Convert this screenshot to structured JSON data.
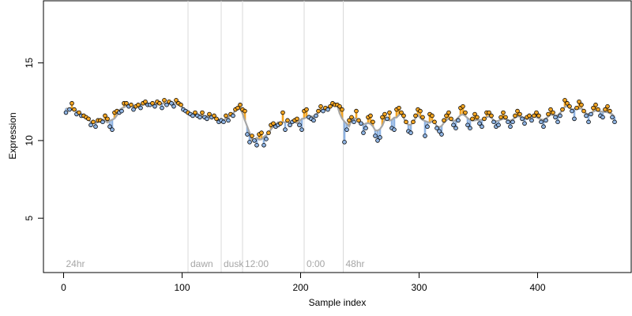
{
  "chart_data": {
    "type": "scatter",
    "xlabel": "Sample index",
    "ylabel": "Expression",
    "xlim": [
      -17,
      479
    ],
    "ylim": [
      1.5,
      19
    ],
    "x_ticks": [
      "0",
      "100",
      "200",
      "300",
      "400"
    ],
    "y_ticks": [
      "5",
      "10",
      "15"
    ],
    "grid": false,
    "legend": "none",
    "colors": {
      "above_trend": "#f5a623",
      "below_trend": "#8fb4e3",
      "trend_line": "#a6a6a6",
      "phase_line": "#d9d9d9",
      "phase_label": "#a6a6a6"
    },
    "phases": [
      {
        "label": "24hr",
        "x": 0
      },
      {
        "label": "dawn",
        "x": 105
      },
      {
        "label": "dusk",
        "x": 133
      },
      {
        "label": "12:00",
        "x": 151
      },
      {
        "label": "0:00",
        "x": 203
      },
      {
        "label": "48hr",
        "x": 236
      }
    ],
    "series": [
      {
        "values": [
          [
            2,
            11.8
          ],
          [
            5,
            12.0
          ],
          [
            7,
            12.4
          ],
          [
            9,
            12.0
          ],
          [
            11,
            11.7
          ],
          [
            13,
            11.8
          ],
          [
            15,
            11.6
          ],
          [
            17,
            11.6
          ],
          [
            19,
            11.5
          ],
          [
            21,
            11.4
          ],
          [
            23,
            11.0
          ],
          [
            25,
            11.2
          ],
          [
            27,
            10.9
          ],
          [
            29,
            11.3
          ],
          [
            31,
            11.3
          ],
          [
            33,
            11.2
          ],
          [
            35,
            11.6
          ],
          [
            37,
            11.4
          ],
          [
            39,
            10.9
          ],
          [
            41,
            10.7
          ],
          [
            43,
            11.8
          ],
          [
            45,
            11.9
          ],
          [
            47,
            11.8
          ],
          [
            49,
            11.9
          ],
          [
            51,
            12.4
          ],
          [
            53,
            12.4
          ],
          [
            55,
            12.2
          ],
          [
            57,
            12.3
          ],
          [
            59,
            12.0
          ],
          [
            61,
            12.2
          ],
          [
            63,
            12.3
          ],
          [
            65,
            12.1
          ],
          [
            67,
            12.4
          ],
          [
            69,
            12.5
          ],
          [
            71,
            12.3
          ],
          [
            73,
            12.3
          ],
          [
            75,
            12.4
          ],
          [
            77,
            12.2
          ],
          [
            79,
            12.5
          ],
          [
            81,
            12.4
          ],
          [
            83,
            12.1
          ],
          [
            85,
            12.6
          ],
          [
            87,
            12.3
          ],
          [
            89,
            12.5
          ],
          [
            91,
            12.4
          ],
          [
            93,
            12.2
          ],
          [
            95,
            12.6
          ],
          [
            97,
            12.4
          ],
          [
            99,
            12.3
          ],
          [
            101,
            12.0
          ],
          [
            103,
            11.9
          ],
          [
            105,
            11.8
          ],
          [
            107,
            11.7
          ],
          [
            109,
            11.6
          ],
          [
            111,
            11.8
          ],
          [
            113,
            11.6
          ],
          [
            115,
            11.5
          ],
          [
            117,
            11.8
          ],
          [
            119,
            11.5
          ],
          [
            121,
            11.4
          ],
          [
            123,
            11.7
          ],
          [
            125,
            11.5
          ],
          [
            127,
            11.6
          ],
          [
            129,
            11.4
          ],
          [
            131,
            11.2
          ],
          [
            133,
            11.3
          ],
          [
            135,
            11.2
          ],
          [
            137,
            11.6
          ],
          [
            139,
            11.3
          ],
          [
            141,
            11.7
          ],
          [
            143,
            11.6
          ],
          [
            145,
            12.0
          ],
          [
            147,
            12.1
          ],
          [
            149,
            12.3
          ],
          [
            151,
            12.0
          ],
          [
            153,
            11.9
          ],
          [
            155,
            10.4
          ],
          [
            157,
            9.9
          ],
          [
            159,
            10.3
          ],
          [
            161,
            10.0
          ],
          [
            163,
            9.7
          ],
          [
            165,
            10.4
          ],
          [
            167,
            10.5
          ],
          [
            169,
            9.7
          ],
          [
            171,
            10.1
          ],
          [
            173,
            10.5
          ],
          [
            175,
            11.0
          ],
          [
            177,
            11.1
          ],
          [
            179,
            10.9
          ],
          [
            181,
            11.0
          ],
          [
            183,
            11.1
          ],
          [
            185,
            11.8
          ],
          [
            187,
            10.7
          ],
          [
            189,
            11.3
          ],
          [
            191,
            11.0
          ],
          [
            193,
            11.2
          ],
          [
            195,
            11.3
          ],
          [
            197,
            11.4
          ],
          [
            199,
            11.0
          ],
          [
            201,
            10.7
          ],
          [
            203,
            11.9
          ],
          [
            205,
            12.0
          ],
          [
            207,
            11.5
          ],
          [
            209,
            11.4
          ],
          [
            211,
            11.3
          ],
          [
            213,
            11.6
          ],
          [
            215,
            11.9
          ],
          [
            217,
            12.2
          ],
          [
            219,
            11.9
          ],
          [
            221,
            12.1
          ],
          [
            223,
            12.0
          ],
          [
            225,
            12.2
          ],
          [
            227,
            12.4
          ],
          [
            229,
            12.3
          ],
          [
            231,
            12.3
          ],
          [
            233,
            12.2
          ],
          [
            235,
            12.0
          ],
          [
            237,
            9.9
          ],
          [
            239,
            10.7
          ],
          [
            241,
            11.3
          ],
          [
            243,
            11.5
          ],
          [
            245,
            11.2
          ],
          [
            247,
            11.9
          ],
          [
            249,
            11.3
          ],
          [
            251,
            11.1
          ],
          [
            253,
            10.5
          ],
          [
            255,
            10.8
          ],
          [
            257,
            11.5
          ],
          [
            259,
            11.6
          ],
          [
            261,
            11.2
          ],
          [
            263,
            10.3
          ],
          [
            265,
            10.0
          ],
          [
            267,
            10.2
          ],
          [
            269,
            11.5
          ],
          [
            271,
            11.7
          ],
          [
            273,
            11.4
          ],
          [
            275,
            11.8
          ],
          [
            277,
            10.8
          ],
          [
            279,
            10.7
          ],
          [
            281,
            12.0
          ],
          [
            283,
            12.1
          ],
          [
            285,
            11.8
          ],
          [
            287,
            11.6
          ],
          [
            289,
            11.2
          ],
          [
            291,
            10.6
          ],
          [
            293,
            10.5
          ],
          [
            295,
            11.2
          ],
          [
            297,
            11.6
          ],
          [
            299,
            12.0
          ],
          [
            301,
            11.9
          ],
          [
            303,
            11.5
          ],
          [
            305,
            10.3
          ],
          [
            307,
            10.9
          ],
          [
            309,
            11.7
          ],
          [
            311,
            11.6
          ],
          [
            313,
            11.2
          ],
          [
            315,
            10.8
          ],
          [
            317,
            10.6
          ],
          [
            319,
            10.4
          ],
          [
            321,
            11.3
          ],
          [
            323,
            11.6
          ],
          [
            325,
            11.8
          ],
          [
            327,
            11.4
          ],
          [
            329,
            11.0
          ],
          [
            331,
            10.8
          ],
          [
            333,
            11.3
          ],
          [
            335,
            12.1
          ],
          [
            337,
            12.2
          ],
          [
            339,
            11.8
          ],
          [
            341,
            11.0
          ],
          [
            343,
            10.8
          ],
          [
            345,
            11.4
          ],
          [
            347,
            11.7
          ],
          [
            349,
            11.5
          ],
          [
            351,
            11.1
          ],
          [
            353,
            10.9
          ],
          [
            355,
            11.4
          ],
          [
            357,
            11.8
          ],
          [
            359,
            11.8
          ],
          [
            361,
            11.6
          ],
          [
            363,
            11.2
          ],
          [
            365,
            10.9
          ],
          [
            367,
            11.0
          ],
          [
            369,
            11.5
          ],
          [
            371,
            11.8
          ],
          [
            373,
            11.5
          ],
          [
            375,
            11.2
          ],
          [
            377,
            10.9
          ],
          [
            379,
            11.2
          ],
          [
            381,
            11.6
          ],
          [
            383,
            11.9
          ],
          [
            385,
            11.7
          ],
          [
            387,
            11.4
          ],
          [
            389,
            11.1
          ],
          [
            391,
            11.5
          ],
          [
            393,
            11.6
          ],
          [
            395,
            11.3
          ],
          [
            397,
            11.6
          ],
          [
            399,
            11.8
          ],
          [
            401,
            11.6
          ],
          [
            403,
            11.2
          ],
          [
            405,
            10.9
          ],
          [
            407,
            11.3
          ],
          [
            409,
            11.7
          ],
          [
            411,
            12.0
          ],
          [
            413,
            11.8
          ],
          [
            415,
            11.5
          ],
          [
            417,
            11.2
          ],
          [
            419,
            11.6
          ],
          [
            421,
            12.0
          ],
          [
            423,
            12.6
          ],
          [
            425,
            12.4
          ],
          [
            427,
            12.2
          ],
          [
            429,
            11.9
          ],
          [
            431,
            11.4
          ],
          [
            433,
            12.1
          ],
          [
            435,
            12.5
          ],
          [
            437,
            12.3
          ],
          [
            439,
            11.9
          ],
          [
            441,
            11.6
          ],
          [
            443,
            11.2
          ],
          [
            445,
            11.7
          ],
          [
            447,
            12.1
          ],
          [
            449,
            12.3
          ],
          [
            451,
            12.0
          ],
          [
            453,
            11.6
          ],
          [
            455,
            11.5
          ],
          [
            457,
            12.0
          ],
          [
            459,
            12.2
          ],
          [
            461,
            11.9
          ],
          [
            463,
            11.5
          ],
          [
            465,
            11.2
          ]
        ]
      }
    ]
  }
}
